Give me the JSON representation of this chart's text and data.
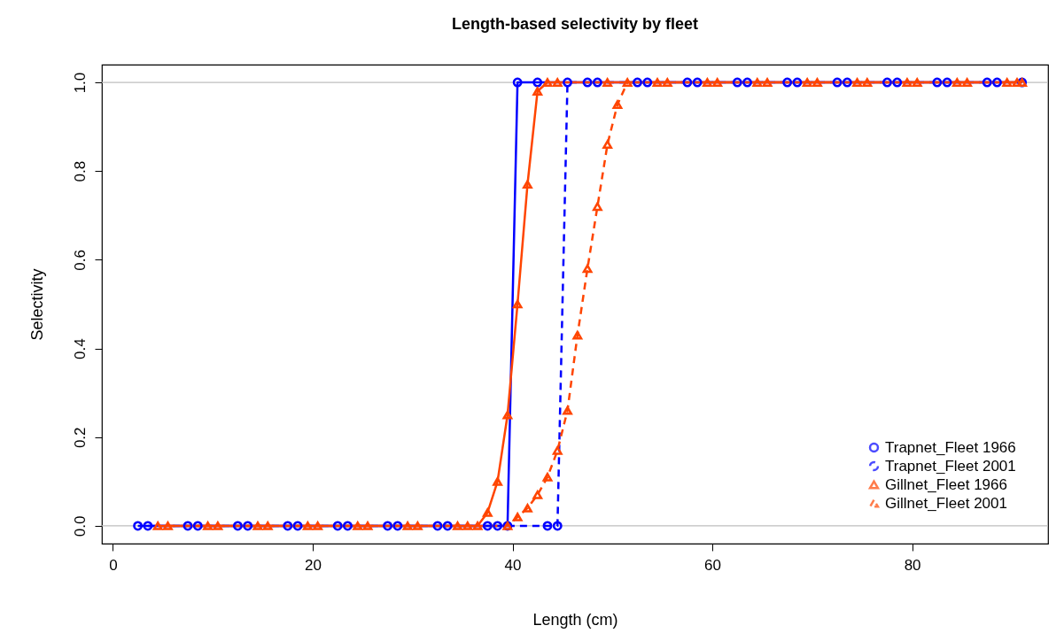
{
  "chart_data": {
    "type": "line",
    "title": "Length-based selectivity by fleet",
    "xlabel": "Length (cm)",
    "ylabel": "Selectivity",
    "xlim": [
      -1.1,
      93.6
    ],
    "ylim": [
      -0.04,
      1.04
    ],
    "xticks": [
      0,
      20,
      40,
      60,
      80
    ],
    "yticks": [
      {
        "value": 0,
        "label": "0.0"
      },
      {
        "value": 0.2,
        "label": "0.2"
      },
      {
        "value": 0.4,
        "label": "0.4"
      },
      {
        "value": 0.6,
        "label": "0.6"
      },
      {
        "value": 0.8,
        "label": "0.8"
      },
      {
        "value": 1,
        "label": "1.0"
      }
    ],
    "grid": false,
    "legend": "bottom right",
    "ref_lines": [
      {
        "axis": "y",
        "value": 0,
        "color": "#bebebe"
      },
      {
        "axis": "y",
        "value": 1,
        "color": "#bebebe"
      }
    ],
    "series": [
      {
        "name": "Trapnet_Fleet 1966",
        "color": "#0000ff",
        "marker": "circle",
        "line_style": "solid",
        "x": [
          2.5,
          7.5,
          12.5,
          17.5,
          22.5,
          27.5,
          32.5,
          37.5,
          39.5,
          40.5,
          42.5,
          47.5,
          52.5,
          57.5,
          62.5,
          67.5,
          72.5,
          77.5,
          82.5,
          87.5,
          91
        ],
        "values": [
          0,
          0,
          0,
          0,
          0,
          0,
          0,
          0,
          0,
          1,
          1,
          1,
          1,
          1,
          1,
          1,
          1,
          1,
          1,
          1,
          1
        ]
      },
      {
        "name": "Trapnet_Fleet 2001",
        "color": "#0000ff",
        "marker": "circle",
        "line_style": "dashed",
        "x": [
          3.5,
          8.5,
          13.5,
          18.5,
          23.5,
          28.5,
          33.5,
          38.5,
          43.5,
          44.5,
          45.5,
          48.5,
          53.5,
          58.5,
          63.5,
          68.5,
          73.5,
          78.5,
          83.5,
          88.5
        ],
        "values": [
          0,
          0,
          0,
          0,
          0,
          0,
          0,
          0,
          0,
          0,
          1,
          1,
          1,
          1,
          1,
          1,
          1,
          1,
          1,
          1
        ]
      },
      {
        "name": "Gillnet_Fleet 1966",
        "color": "#ff4500",
        "marker": "triangle",
        "line_style": "solid",
        "x": [
          4.5,
          9.5,
          14.5,
          19.5,
          24.5,
          29.5,
          34.5,
          36.5,
          37.5,
          38.5,
          39.5,
          40.5,
          41.5,
          42.5,
          43.5,
          44.5,
          49.5,
          54.5,
          59.5,
          64.5,
          69.5,
          74.5,
          79.5,
          84.5,
          89.5,
          91
        ],
        "values": [
          0,
          0,
          0,
          0,
          0,
          0,
          0,
          0,
          0.03,
          0.1,
          0.25,
          0.5,
          0.77,
          0.98,
          1,
          1,
          1,
          1,
          1,
          1,
          1,
          1,
          1,
          1,
          1,
          1
        ]
      },
      {
        "name": "Gillnet_Fleet 2001",
        "color": "#ff4500",
        "marker": "triangle",
        "line_style": "dashed",
        "x": [
          5.5,
          10.5,
          15.5,
          20.5,
          25.5,
          30.5,
          35.5,
          39.5,
          40.5,
          41.5,
          42.5,
          43.5,
          44.5,
          45.5,
          46.5,
          47.5,
          48.5,
          49.5,
          50.5,
          51.5,
          55.5,
          60.5,
          65.5,
          70.5,
          75.5,
          80.5,
          85.5,
          90.5
        ],
        "values": [
          0,
          0,
          0,
          0,
          0,
          0,
          0,
          0,
          0.02,
          0.04,
          0.07,
          0.11,
          0.17,
          0.26,
          0.43,
          0.58,
          0.72,
          0.86,
          0.95,
          1,
          1,
          1,
          1,
          1,
          1,
          1,
          1,
          1
        ]
      }
    ]
  }
}
